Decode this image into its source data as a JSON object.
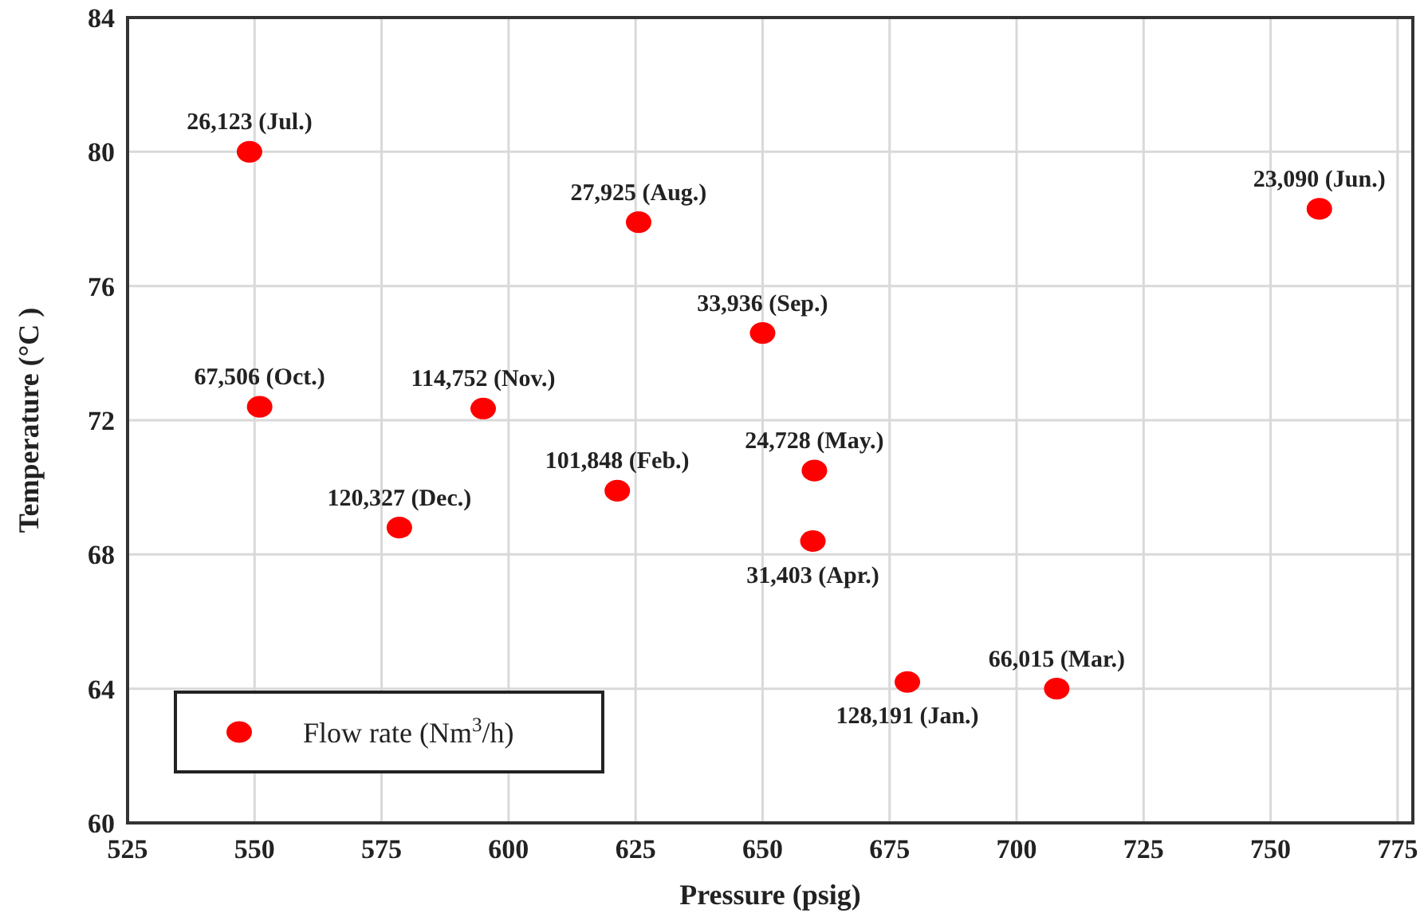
{
  "chart_data": {
    "type": "scatter",
    "xlabel": "Pressure (psig)",
    "ylabel": "Temperature (°C )",
    "x": [
      549,
      625.6,
      650,
      759.6,
      551,
      595,
      621.4,
      578.5,
      660.2,
      659.9,
      678.5,
      707.9
    ],
    "series": [
      {
        "name": "Flow rate (Nm$^{3}$/h)",
        "color": "#ff0000",
        "values": [
          80,
          77.9,
          74.6,
          78.3,
          72.4,
          72.35,
          69.9,
          68.8,
          70.5,
          68.4,
          64.2,
          64
        ]
      }
    ],
    "annotations": [
      {
        "text": "26,123 (Jul.)",
        "x": 549,
        "y": 80
      },
      {
        "text": "27,925 (Aug.)",
        "x": 625.6,
        "y": 77.9
      },
      {
        "text": "33,936 (Sep.)",
        "x": 650,
        "y": 74.6
      },
      {
        "text": "23,090 (Jun.)",
        "x": 759.6,
        "y": 78.3
      },
      {
        "text": "67,506 (Oct.)",
        "x": 551,
        "y": 72.4
      },
      {
        "text": "114,752 (Nov.)",
        "x": 595,
        "y": 72.35
      },
      {
        "text": "101,848 (Feb.)",
        "x": 621.4,
        "y": 69.9
      },
      {
        "text": "120,327 (Dec.)",
        "x": 578.5,
        "y": 68.8
      },
      {
        "text": "24,728 (May.)",
        "x": 660.2,
        "y": 70.5
      },
      {
        "text": "31,403 (Apr.)",
        "x": 659.9,
        "y": 68.4
      },
      {
        "text": "128,191 (Jan.)",
        "x": 678.5,
        "y": 64.2
      },
      {
        "text": "66,015 (Mar.)",
        "x": 707.9,
        "y": 64
      }
    ],
    "xlim": [
      525,
      778
    ],
    "xticks": [
      525,
      550,
      575,
      600,
      625,
      650,
      675,
      700,
      725,
      750,
      775
    ],
    "ylim": [
      60,
      84
    ],
    "yticks": [
      60,
      64,
      68,
      72,
      76,
      80,
      84
    ],
    "grid": true,
    "legend": "bottom left",
    "marker": "circle"
  }
}
